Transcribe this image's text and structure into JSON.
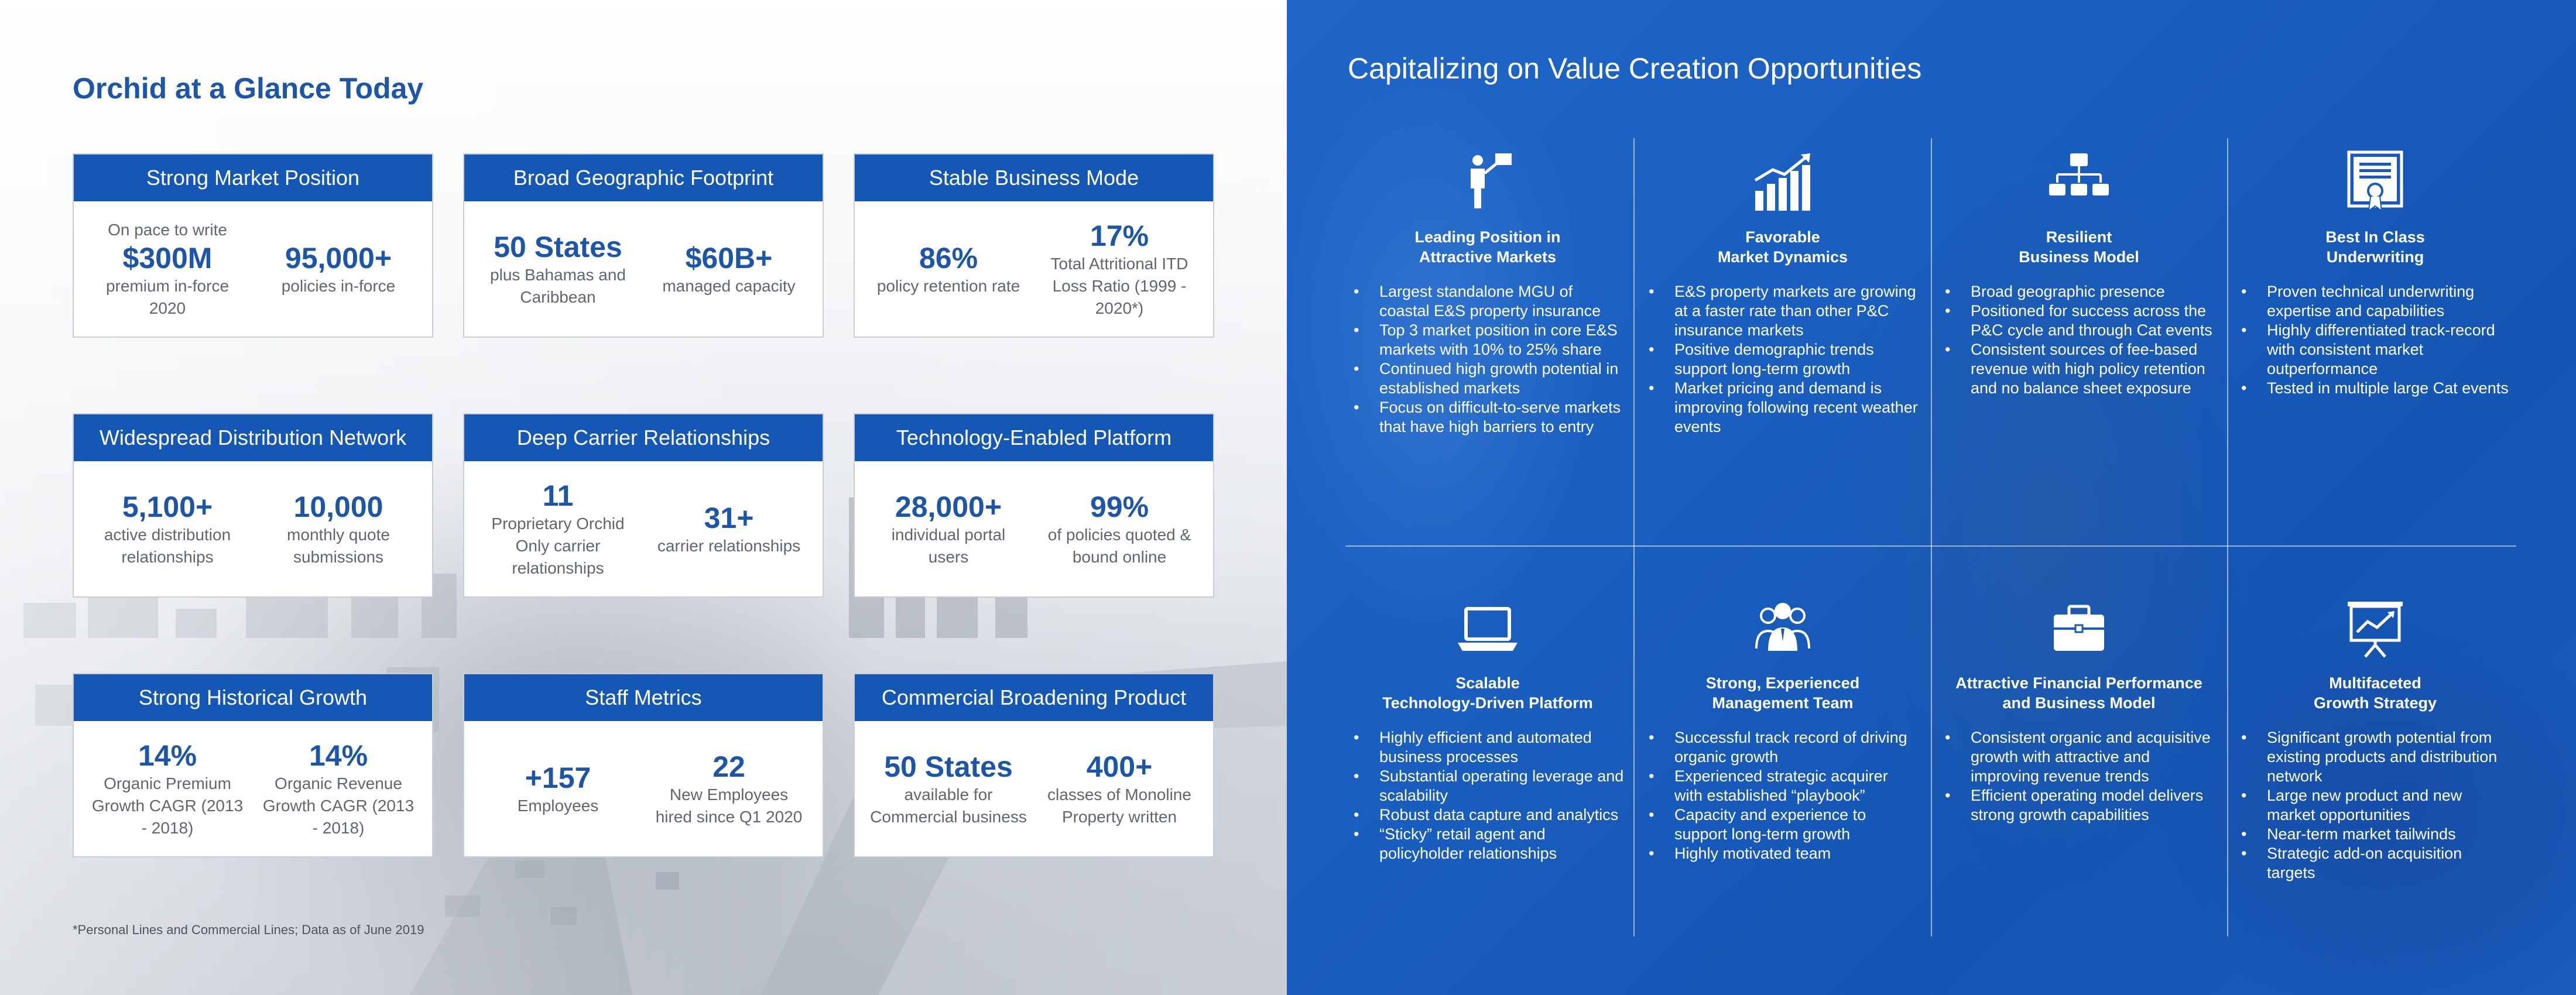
{
  "left": {
    "title": "Orchid at a Glance Today",
    "cards": [
      {
        "title": "Strong Market Position",
        "stats": [
          {
            "pre": "On pace to write",
            "big": "$300M",
            "sub": "premium in-force 2020"
          },
          {
            "pre": "",
            "big": "95,000+",
            "sub": "policies in-force"
          }
        ]
      },
      {
        "title": "Broad Geographic Footprint",
        "stats": [
          {
            "pre": "",
            "big": "50 States",
            "sub": "plus Bahamas and Caribbean"
          },
          {
            "pre": "",
            "big": "$60B+",
            "sub": "managed capacity"
          }
        ]
      },
      {
        "title": "Stable Business Mode",
        "stats": [
          {
            "pre": "",
            "big": "86%",
            "sub": "policy retention rate"
          },
          {
            "pre": "",
            "big": "17%",
            "sub": "Total Attritional ITD Loss Ratio (1999 - 2020*)"
          }
        ]
      },
      {
        "title": "Widespread Distribution Network",
        "stats": [
          {
            "pre": "",
            "big": "5,100+",
            "sub": "active distribution relationships"
          },
          {
            "pre": "",
            "big": "10,000",
            "sub": "monthly quote submissions"
          }
        ]
      },
      {
        "title": "Deep Carrier Relationships",
        "stats": [
          {
            "pre": "",
            "big": "11",
            "sub": "Proprietary Orchid Only carrier relationships"
          },
          {
            "pre": "",
            "big": "31+",
            "sub": "carrier relationships"
          }
        ]
      },
      {
        "title": "Technology-Enabled Platform",
        "stats": [
          {
            "pre": "",
            "big": "28,000+",
            "sub": "individual portal users"
          },
          {
            "pre": "",
            "big": "99%",
            "sub": "of policies quoted & bound online"
          }
        ]
      },
      {
        "title": "Strong Historical Growth",
        "stats": [
          {
            "pre": "",
            "big": "14%",
            "sub": "Organic Premium Growth CAGR (2013 - 2018)"
          },
          {
            "pre": "",
            "big": "14%",
            "sub": "Organic Revenue Growth CAGR (2013 - 2018)"
          }
        ]
      },
      {
        "title": "Staff Metrics",
        "stats": [
          {
            "pre": "",
            "big": "+157",
            "sub": "Employees"
          },
          {
            "pre": "",
            "big": "22",
            "sub": "New Employees hired since Q1 2020"
          }
        ]
      },
      {
        "title": "Commercial Broadening Product",
        "stats": [
          {
            "pre": "",
            "big": "50 States",
            "sub": "available for Commercial business"
          },
          {
            "pre": "",
            "big": "400+",
            "sub": "classes of Monoline Property written"
          }
        ]
      }
    ],
    "footnote": "*Personal Lines and Commercial Lines; Data as of June 2019"
  },
  "right": {
    "title": "Capitalizing on Value Creation Opportunities",
    "cells": [
      {
        "icon": "leader-flag-icon",
        "title1": "Leading Position in",
        "title2": "Attractive Markets",
        "bullets": [
          "Largest standalone MGU of coastal E&S property insurance",
          "Top 3 market position in core E&S markets with 10% to 25% share",
          "Continued high growth potential in established markets",
          "Focus on difficult-to-serve markets that have high barriers to entry"
        ]
      },
      {
        "icon": "growth-bar-chart-icon",
        "title1": "Favorable",
        "title2": "Market Dynamics",
        "bullets": [
          "E&S property markets are growing at a faster rate than other P&C insurance markets",
          "Positive demographic trends support long-term growth",
          "Market pricing and demand is improving following recent  weather events"
        ]
      },
      {
        "icon": "org-chart-icon",
        "title1": "Resilient",
        "title2": "Business Model",
        "bullets": [
          "Broad geographic presence",
          "Positioned for success across the P&C cycle and through Cat events",
          "Consistent sources of fee-based revenue with high policy retention and no balance sheet exposure"
        ]
      },
      {
        "icon": "certificate-icon",
        "title1": "Best In Class",
        "title2": "Underwriting",
        "bullets": [
          "Proven technical underwriting expertise and capabilities",
          "Highly differentiated track-record with consistent market outperformance",
          "Tested in multiple large Cat events"
        ]
      },
      {
        "icon": "laptop-icon",
        "title1": "Scalable",
        "title2": "Technology-Driven Platform",
        "bullets": [
          "Highly efficient and automated business processes",
          "Substantial operating leverage and scalability",
          "Robust data capture and analytics",
          "“Sticky” retail agent and policyholder relationships"
        ]
      },
      {
        "icon": "management-team-icon",
        "title1": "Strong, Experienced",
        "title2": "Management Team",
        "bullets": [
          "Successful track record of driving organic growth",
          "Experienced strategic acquirer with established “playbook”",
          "Capacity and experience to support long-term growth",
          "Highly motivated team"
        ]
      },
      {
        "icon": "briefcase-icon",
        "title1": "Attractive Financial Performance",
        "title2": "and Business Model",
        "bullets": [
          "Consistent organic and acquisitive growth with attractive and improving revenue trends",
          "Efficient operating model delivers strong growth capabilities"
        ]
      },
      {
        "icon": "presentation-board-icon",
        "title1": "Multifaceted",
        "title2": "Growth Strategy",
        "bullets": [
          "Significant growth potential from existing products and distribution network",
          "Large new product and new market opportunities",
          "Near-term market tailwinds",
          "Strategic add-on acquisition targets"
        ]
      }
    ]
  }
}
